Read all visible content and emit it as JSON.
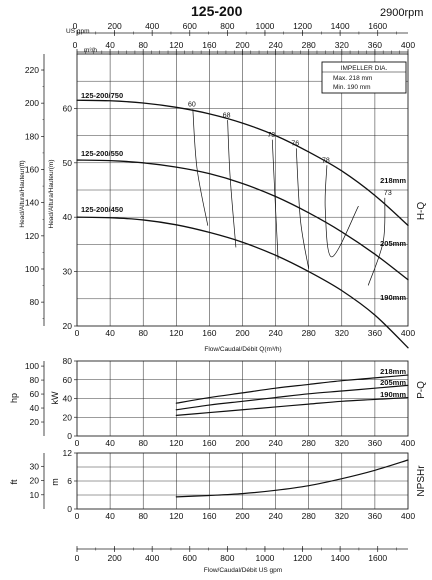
{
  "header": {
    "title": "125-200",
    "speed": "2900rpm"
  },
  "axis_labels": {
    "usgpm_top": "US gpm",
    "m3h_top": "m³/h",
    "head_ft": "Head/Altura/Hauteur(ft)",
    "head_m": "Head/Altura/Hauteur(m)",
    "flow_mid": "Flow/Caudal/Débit Q(m³/h)",
    "flow_bottom": "Flow/Caudal/Débit US gpm",
    "power_hp": "hp",
    "power_kw": "kW",
    "npsh_ft": "ft",
    "npsh_m": "m"
  },
  "side_labels": {
    "hq": "H-Q",
    "pq": "P-Q",
    "npshr": "NPSHr"
  },
  "impeller_box": {
    "title": "IMPELLER DIA.",
    "max": "Max. 218 mm",
    "min": "Min.  190 mm"
  },
  "colors": {
    "curve": "#111111",
    "grid": "#333333",
    "background": "#ffffff"
  },
  "chart_data": [
    {
      "type": "line",
      "name": "H-Q",
      "x_ticks": [
        0,
        40,
        80,
        120,
        160,
        200,
        240,
        280,
        320,
        360,
        400
      ],
      "usgpm_ticks": [
        0,
        200,
        400,
        600,
        800,
        1000,
        1200,
        1400,
        1600
      ],
      "ylim": [
        20,
        70
      ],
      "y_ticks_m": [
        20,
        30,
        40,
        50,
        60
      ],
      "y_ticks_ft": [
        80,
        100,
        120,
        140,
        160,
        180,
        200,
        220
      ],
      "xlim": [
        0,
        400
      ],
      "series": [
        {
          "name": "218mm",
          "x": [
            0,
            40,
            80,
            120,
            160,
            200,
            240,
            280,
            320,
            360,
            400
          ],
          "y": [
            61.5,
            61.4,
            61.0,
            60.2,
            59.0,
            57.3,
            55.0,
            52.0,
            48.5,
            44.0,
            38.5
          ]
        },
        {
          "name": "205mm",
          "x": [
            0,
            40,
            80,
            120,
            160,
            200,
            240,
            280,
            320,
            360,
            400
          ],
          "y": [
            50.5,
            50.4,
            50.0,
            49.2,
            48.0,
            46.2,
            43.8,
            40.8,
            37.3,
            33.2,
            28.5
          ]
        },
        {
          "name": "190mm",
          "x": [
            0,
            40,
            80,
            120,
            160,
            200,
            240,
            280,
            320,
            360,
            400
          ],
          "y": [
            40.0,
            39.9,
            39.5,
            38.6,
            37.2,
            35.4,
            33.0,
            30.0,
            26.5,
            22.0,
            16.0
          ]
        }
      ],
      "curve_labels": [
        "125-200/750",
        "125-200/550",
        "125-200/450"
      ],
      "efficiency": [
        {
          "label": "60",
          "x": [
            140,
            145,
            158
          ],
          "y": [
            59.8,
            49.0,
            38.5
          ]
        },
        {
          "label": "68",
          "x": [
            182,
            185,
            192
          ],
          "y": [
            57.8,
            47.5,
            34.5
          ]
        },
        {
          "label": "73",
          "x": [
            236,
            239,
            243
          ],
          "y": [
            54.2,
            44.5,
            32.3
          ]
        },
        {
          "label": "76",
          "x": [
            265,
            270,
            280
          ],
          "y": [
            52.6,
            39.5,
            30.5
          ]
        },
        {
          "label": "78",
          "x": [
            302,
            300,
            308,
            340
          ],
          "y": [
            49.5,
            41.5,
            32.7,
            42.0
          ]
        },
        {
          "label": "73",
          "x": [
            372,
            370,
            352
          ],
          "y": [
            43.5,
            35.5,
            27.5
          ]
        }
      ]
    },
    {
      "type": "line",
      "name": "P-Q",
      "xlim": [
        0,
        400
      ],
      "ylim": [
        0,
        80
      ],
      "y_ticks_kw": [
        0,
        20,
        40,
        60,
        80
      ],
      "y_ticks_hp": [
        20,
        40,
        60,
        80,
        100
      ],
      "series": [
        {
          "name": "218mm",
          "x": [
            120,
            160,
            200,
            240,
            280,
            320,
            360,
            400
          ],
          "y": [
            35,
            41,
            46,
            51,
            55,
            59,
            62,
            65
          ]
        },
        {
          "name": "205mm",
          "x": [
            120,
            160,
            200,
            240,
            280,
            320,
            360,
            400
          ],
          "y": [
            28,
            33,
            37,
            41,
            45,
            48,
            51,
            54
          ]
        },
        {
          "name": "190mm",
          "x": [
            120,
            160,
            200,
            240,
            280,
            320,
            360,
            400
          ],
          "y": [
            22,
            25,
            28,
            31,
            34,
            37,
            39,
            41
          ]
        }
      ]
    },
    {
      "type": "line",
      "name": "NPSHr",
      "xlim": [
        0,
        400
      ],
      "ylim": [
        0,
        12
      ],
      "y_ticks_m": [
        0,
        6,
        12
      ],
      "y_ticks_ft": [
        10,
        20,
        30
      ],
      "series": [
        {
          "name": "NPSHr",
          "x": [
            120,
            160,
            200,
            240,
            280,
            320,
            360,
            400
          ],
          "y": [
            2.6,
            2.9,
            3.3,
            4.0,
            5.0,
            6.5,
            8.3,
            10.5
          ]
        }
      ]
    }
  ]
}
